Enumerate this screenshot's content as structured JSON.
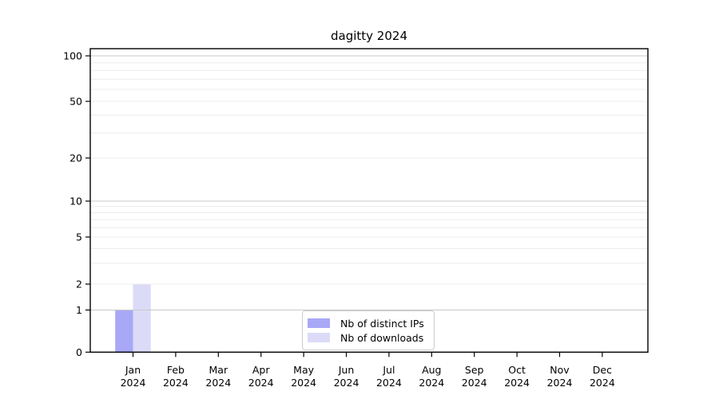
{
  "chart_data": {
    "type": "bar",
    "title": "dagitty 2024",
    "categories": [
      "Jan",
      "Feb",
      "Mar",
      "Apr",
      "May",
      "Jun",
      "Jul",
      "Aug",
      "Sep",
      "Oct",
      "Nov",
      "Dec"
    ],
    "x_year": "2024",
    "series": [
      {
        "name": "Nb of distinct IPs",
        "color": "#a8a8f7",
        "values": [
          1,
          0,
          0,
          0,
          0,
          0,
          0,
          0,
          0,
          0,
          0,
          0
        ]
      },
      {
        "name": "Nb of downloads",
        "color": "#dbdbf7",
        "values": [
          2,
          0,
          0,
          0,
          0,
          0,
          0,
          0,
          0,
          0,
          0,
          0
        ]
      }
    ],
    "xlabel": "",
    "ylabel": "",
    "y_scale": "log1p",
    "ylim": [
      0,
      112
    ],
    "y_ticks": [
      0,
      1,
      2,
      5,
      10,
      20,
      50,
      100
    ],
    "y_minor_gridlines": [
      3,
      4,
      6,
      7,
      8,
      9,
      30,
      40,
      60,
      70,
      80,
      90
    ],
    "y_major_gridlines": [
      1,
      10,
      100
    ],
    "grid": {
      "horizontal": true,
      "vertical": false,
      "minor": true
    },
    "legend_position": "inside-bottom-center",
    "colors": {
      "major_grid": "#c8c8c8",
      "minor_grid": "#ececec",
      "axis": "#000000",
      "background": "#ffffff"
    }
  }
}
